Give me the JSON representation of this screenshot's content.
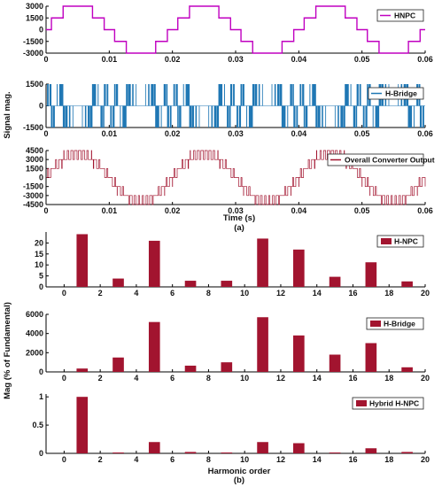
{
  "colors": {
    "hnpc": "#c000c0",
    "hbridge": "#1f77b4",
    "overall": "#a2142f",
    "bar": "#a2142f",
    "axis": "#000000"
  },
  "figure": {
    "panel_a_label": "(a)",
    "panel_b_label": "(b)",
    "a_ylabel": "Signal mag.",
    "a_xlabel": "Time (s)",
    "b_ylabel": "Mag (% of Fundamental)",
    "b_xlabel": "Harmonic order"
  },
  "chart_data": [
    {
      "type": "line",
      "series": [
        {
          "name": "HNPC",
          "levels": [
            -3000,
            -1500,
            0,
            1500,
            3000
          ],
          "fundamental_hz": 50
        }
      ],
      "xlim": [
        0,
        0.06
      ],
      "xticks": [
        "0",
        "0.01",
        "0.02",
        "0.03",
        "0.04",
        "0.05",
        "0.06"
      ],
      "ylim": [
        -3000,
        3000
      ],
      "yticks": [
        "3000",
        "1500",
        "0",
        "-1500",
        "-3000"
      ],
      "legend": "top-right"
    },
    {
      "type": "line",
      "series": [
        {
          "name": "H-Bridge",
          "levels": [
            -1500,
            0,
            1500
          ],
          "fundamental_hz": 50
        }
      ],
      "xlim": [
        0,
        0.06
      ],
      "xticks": [
        "0",
        "0.01",
        "0.02",
        "0.03",
        "0.04",
        "0.05",
        "0.06"
      ],
      "ylim": [
        -1500,
        1500
      ],
      "yticks": [
        "1500",
        "0",
        "-1500"
      ],
      "legend": "top-right"
    },
    {
      "type": "line",
      "series": [
        {
          "name": "Overall Converter Output",
          "levels": [
            -4500,
            -3000,
            -1500,
            0,
            1500,
            3000,
            4500
          ],
          "fundamental_hz": 50
        }
      ],
      "xlim": [
        0,
        0.06
      ],
      "xticks": [
        "0",
        "0.01",
        "0.02",
        "0.03",
        "0.04",
        "0.05",
        "0.06"
      ],
      "ylim": [
        -4500,
        4500
      ],
      "yticks": [
        "4500",
        "3000",
        "1500",
        "0",
        "-1500",
        "-3000",
        "-4500"
      ],
      "legend": "top-right"
    },
    {
      "type": "bar",
      "series": [
        {
          "name": "H-NPC"
        }
      ],
      "x": [
        1,
        3,
        5,
        7,
        9,
        11,
        13,
        15,
        17,
        19
      ],
      "values": [
        24,
        3.8,
        21,
        2.8,
        2.8,
        22,
        17,
        4.6,
        11.2,
        2.5
      ],
      "xlim": [
        -1,
        20
      ],
      "xticks": [
        "0",
        "2",
        "4",
        "6",
        "8",
        "10",
        "12",
        "14",
        "16",
        "18",
        "20"
      ],
      "ylim": [
        0,
        25
      ],
      "yticks": [
        "20",
        "15",
        "10",
        "5",
        "0"
      ],
      "legend": "top-right"
    },
    {
      "type": "bar",
      "series": [
        {
          "name": "H-Bridge"
        }
      ],
      "x": [
        1,
        3,
        5,
        7,
        9,
        11,
        13,
        15,
        17,
        19
      ],
      "values": [
        350,
        1500,
        5200,
        650,
        1000,
        5700,
        3800,
        1800,
        3000,
        480
      ],
      "xlim": [
        -1,
        20
      ],
      "xticks": [
        "0",
        "2",
        "4",
        "6",
        "8",
        "10",
        "12",
        "14",
        "16",
        "18",
        "20"
      ],
      "ylim": [
        0,
        6000
      ],
      "yticks": [
        "6000",
        "4000",
        "2000",
        "0"
      ],
      "legend": "top-right"
    },
    {
      "type": "bar",
      "series": [
        {
          "name": "Hybrid H-NPC"
        }
      ],
      "x": [
        1,
        3,
        5,
        7,
        9,
        11,
        13,
        15,
        17,
        19
      ],
      "values": [
        1.0,
        0.015,
        0.2,
        0.025,
        0.015,
        0.2,
        0.18,
        0.015,
        0.09,
        0.025
      ],
      "xlim": [
        -1,
        20
      ],
      "xticks": [
        "0",
        "2",
        "4",
        "6",
        "8",
        "10",
        "12",
        "14",
        "16",
        "18",
        "20"
      ],
      "ylim": [
        0,
        1.05
      ],
      "yticks": [
        "1",
        "0.5",
        "0"
      ],
      "legend": "top-right"
    }
  ]
}
